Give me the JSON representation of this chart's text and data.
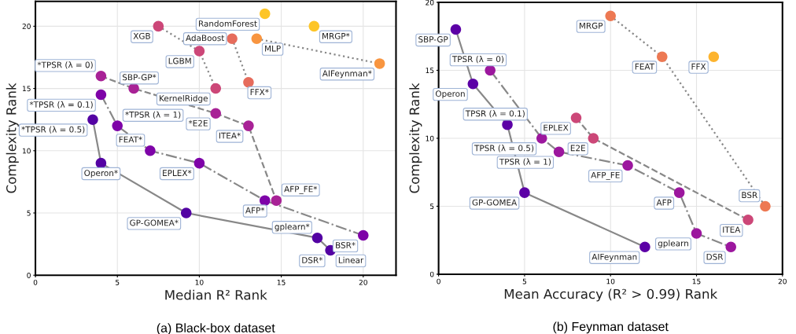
{
  "chart_data": [
    {
      "type": "line",
      "title": "(a) Black-box dataset",
      "xlabel": "Median R² Rank",
      "ylabel": "Complexity Rank",
      "xlim": [
        0,
        22
      ],
      "ylim": [
        0,
        22
      ],
      "xticks": [
        0,
        5,
        10,
        15,
        20
      ],
      "yticks": [
        0,
        5,
        10,
        15,
        20
      ],
      "grid": true,
      "marker": "circle",
      "series": [
        {
          "color": "#5302a3",
          "line_style": "solid",
          "x": [
            3.5,
            4,
            9.2,
            17.2,
            18
          ],
          "values": [
            12.5,
            9,
            5,
            3,
            2
          ]
        },
        {
          "color": "#7e03a8",
          "line_style": "dashdot",
          "x": [
            4,
            5,
            7,
            10,
            14,
            20
          ],
          "values": [
            14.5,
            12,
            10,
            9,
            6,
            3.2
          ]
        },
        {
          "color": "#a82296",
          "line_style": "dashed",
          "x": [
            4,
            6,
            11,
            13,
            14.7
          ],
          "values": [
            16,
            15,
            13,
            12,
            6
          ]
        },
        {
          "color": "#cc4778",
          "line_style": "dotted",
          "x": [
            7.5,
            10,
            11
          ],
          "values": [
            20,
            18,
            15
          ]
        },
        {
          "color": "#e66c5c",
          "line_style": "dotted",
          "x": [
            12,
            13
          ],
          "values": [
            19,
            15.5
          ]
        },
        {
          "color": "#f89540",
          "line_style": "dotted",
          "x": [
            13.5,
            21
          ],
          "values": [
            19,
            17
          ]
        },
        {
          "type": "scatter",
          "color": "#fdc527",
          "x": [
            14,
            17
          ],
          "values": [
            21,
            20
          ]
        }
      ],
      "annotations": [
        {
          "text": "XGB",
          "x": 7.5,
          "y": 20
        },
        {
          "text": "RandomForest",
          "x": 14,
          "y": 21
        },
        {
          "text": "AdaBoost",
          "x": 12,
          "y": 19
        },
        {
          "text": "LGBM",
          "x": 10,
          "y": 18
        },
        {
          "text": "MRGP*",
          "x": 17,
          "y": 20
        },
        {
          "text": "MLP",
          "x": 13.5,
          "y": 19
        },
        {
          "text": "AIFeynman*",
          "x": 21,
          "y": 17
        },
        {
          "text": "FFX*",
          "x": 13,
          "y": 15.5
        },
        {
          "text": "KernelRidge",
          "x": 11,
          "y": 15
        },
        {
          "text": "*TPSR (λ = 0)",
          "x": 4,
          "y": 16
        },
        {
          "text": "SBP-GP*",
          "x": 6,
          "y": 15
        },
        {
          "text": "*TPSR (λ = 0.1)",
          "x": 4,
          "y": 14.5
        },
        {
          "text": "*TPSR (λ = 1)",
          "x": 5,
          "y": 12
        },
        {
          "text": "*TPSR (λ = 0.5)",
          "x": 3.5,
          "y": 12.5
        },
        {
          "text": "*E2E",
          "x": 11,
          "y": 13
        },
        {
          "text": "ITEA*",
          "x": 13,
          "y": 12
        },
        {
          "text": "FEAT*",
          "x": 7,
          "y": 10
        },
        {
          "text": "EPLEX*",
          "x": 10,
          "y": 9
        },
        {
          "text": "Operon*",
          "x": 4,
          "y": 9
        },
        {
          "text": "AFP*",
          "x": 14,
          "y": 6
        },
        {
          "text": "AFP_FE*",
          "x": 14.7,
          "y": 6
        },
        {
          "text": "GP-GOMEA*",
          "x": 9.2,
          "y": 5
        },
        {
          "text": "gplearn*",
          "x": 17.2,
          "y": 3
        },
        {
          "text": "BSR*",
          "x": 20,
          "y": 3.2
        },
        {
          "text": "DSR*",
          "x": 18,
          "y": 2
        },
        {
          "text": "Linear",
          "x": 18,
          "y": 2
        }
      ]
    },
    {
      "type": "line",
      "title": "(b) Feynman dataset",
      "xlabel": "Mean Accuracy (R² > 0.99) Rank",
      "ylabel": "Complexity Rank",
      "xlim": [
        0,
        20
      ],
      "ylim": [
        0,
        20
      ],
      "xticks": [
        0,
        5,
        10,
        15,
        20
      ],
      "yticks": [
        0,
        5,
        10,
        15,
        20
      ],
      "grid": true,
      "marker": "circle",
      "series": [
        {
          "color": "#5c01a6",
          "line_style": "solid",
          "x": [
            1,
            2,
            4,
            5,
            12
          ],
          "values": [
            18,
            14,
            11,
            6,
            2
          ]
        },
        {
          "color": "#9c179e",
          "line_style": "dashdot",
          "x": [
            3,
            6,
            7,
            11,
            14,
            15,
            17
          ],
          "values": [
            15,
            10,
            9,
            8,
            6,
            3,
            2
          ]
        },
        {
          "color": "#cc4778",
          "line_style": "dashed",
          "x": [
            8,
            9,
            18
          ],
          "values": [
            11.5,
            10,
            4
          ]
        },
        {
          "color": "#ed7953",
          "line_style": "dotted",
          "x": [
            10,
            13,
            19
          ],
          "values": [
            19,
            16,
            5
          ]
        },
        {
          "type": "scatter",
          "color": "#fdb42f",
          "x": [
            16
          ],
          "values": [
            16
          ]
        }
      ],
      "annotations": [
        {
          "text": "SBP-GP",
          "x": 1,
          "y": 18
        },
        {
          "text": "TPSR (λ = 0)",
          "x": 3,
          "y": 15
        },
        {
          "text": "Operon",
          "x": 2,
          "y": 14
        },
        {
          "text": "TPSR (λ = 0.1)",
          "x": 4,
          "y": 11
        },
        {
          "text": "EPLEX",
          "x": 8,
          "y": 11.5
        },
        {
          "text": "TPSR (λ = 0.5)",
          "x": 6,
          "y": 10
        },
        {
          "text": "E2E",
          "x": 9,
          "y": 10
        },
        {
          "text": "TPSR (λ = 1)",
          "x": 7,
          "y": 9
        },
        {
          "text": "GP-GOMEA",
          "x": 5,
          "y": 6
        },
        {
          "text": "AIFeynman",
          "x": 12,
          "y": 2
        },
        {
          "text": "MRGP",
          "x": 10,
          "y": 19
        },
        {
          "text": "FEAT",
          "x": 13,
          "y": 16
        },
        {
          "text": "FFX",
          "x": 16,
          "y": 16
        },
        {
          "text": "AFP_FE",
          "x": 11,
          "y": 8
        },
        {
          "text": "AFP",
          "x": 14,
          "y": 6
        },
        {
          "text": "BSR",
          "x": 19,
          "y": 5
        },
        {
          "text": "ITEA",
          "x": 18,
          "y": 4
        },
        {
          "text": "gplearn",
          "x": 15,
          "y": 3
        },
        {
          "text": "DSR",
          "x": 17,
          "y": 2
        }
      ]
    }
  ]
}
